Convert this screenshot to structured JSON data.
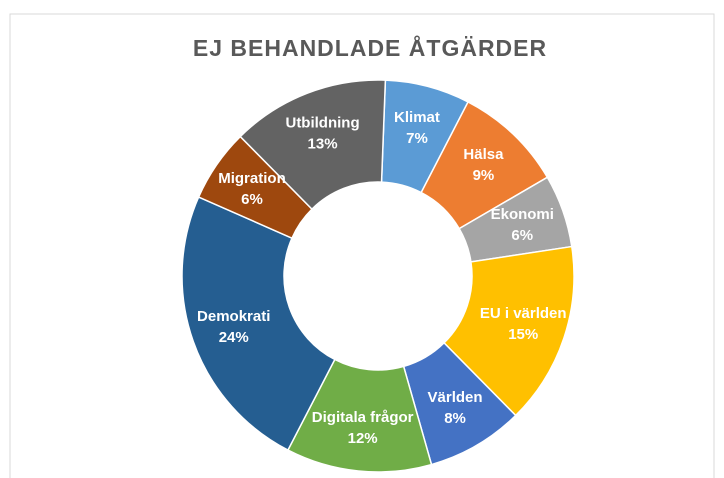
{
  "chart_data": {
    "type": "doughnut",
    "title": "EJ BEHANDLADE ÅTGÄRDER",
    "categories": [
      "Klimat",
      "Hälsa",
      "Ekonomi",
      "EU i världen",
      "Världen",
      "Digitala frågor",
      "Demokrati",
      "Migration",
      "Utbildning"
    ],
    "values": [
      7,
      9,
      6,
      15,
      8,
      12,
      24,
      6,
      13
    ],
    "value_labels": [
      "7%",
      "9%",
      "6%",
      "15%",
      "8%",
      "12%",
      "24%",
      "6%",
      "13%"
    ],
    "colors": [
      "#5b9bd5",
      "#ed7d31",
      "#a5a5a5",
      "#ffc000",
      "#4472c4",
      "#70ad47",
      "#255e91",
      "#9e480e",
      "#636363"
    ]
  }
}
